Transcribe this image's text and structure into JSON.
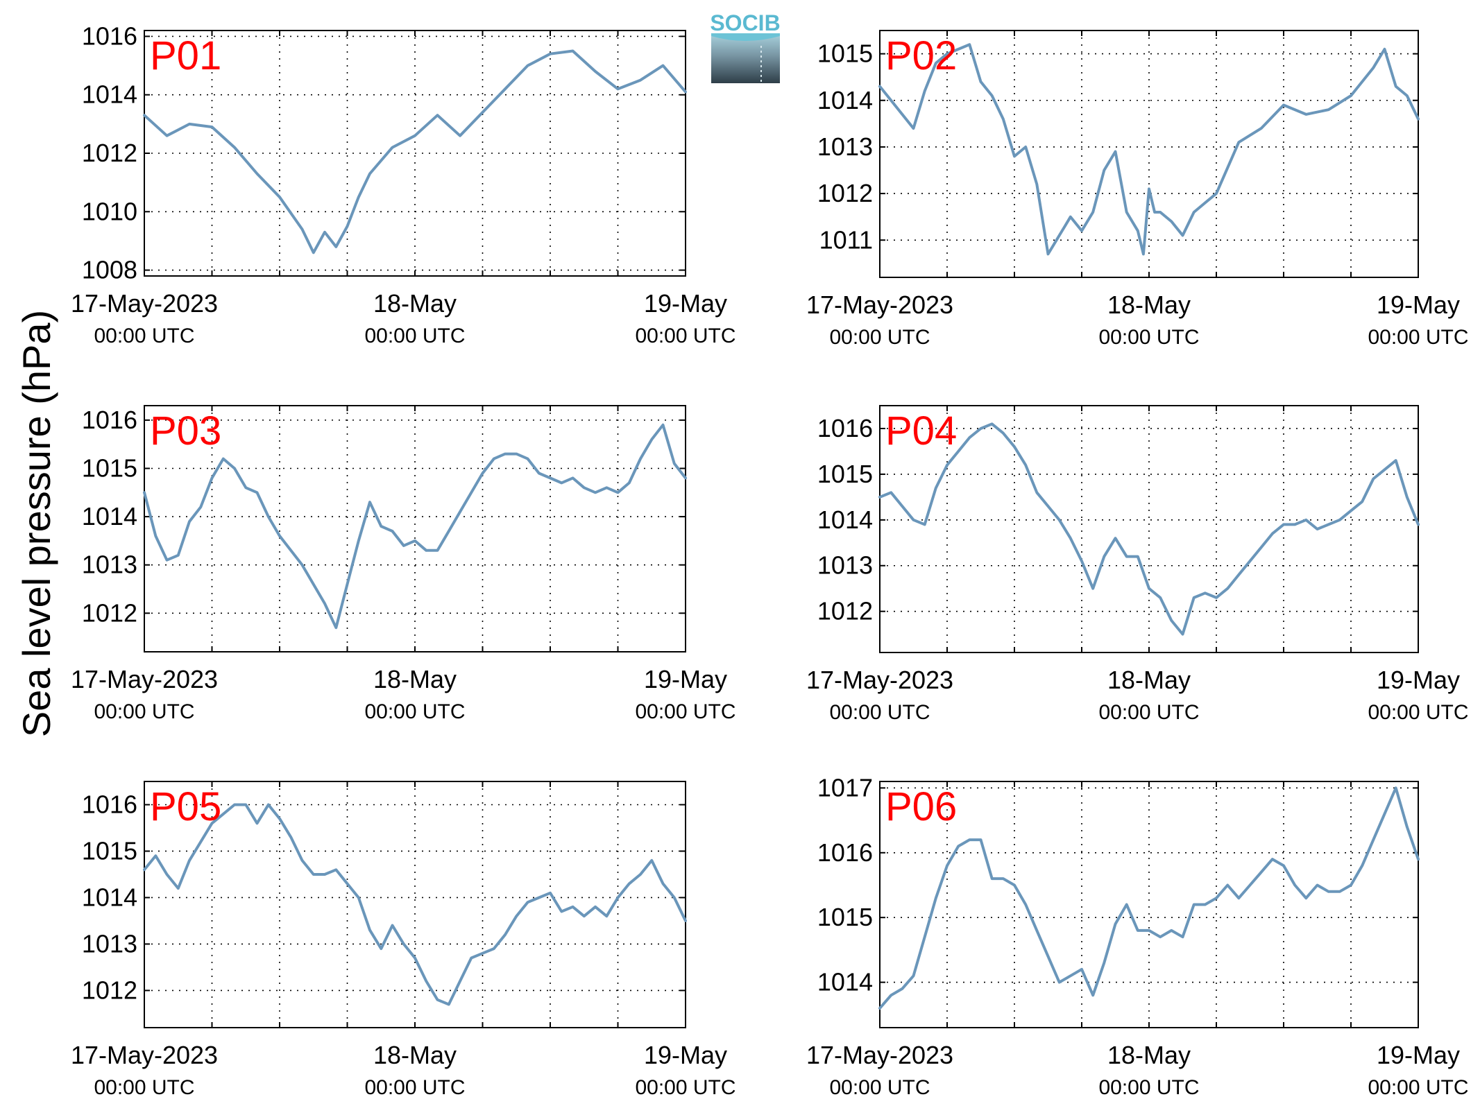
{
  "figure": {
    "ylabel": "Sea level pressure (hPa)",
    "line_color": "#6a96ba",
    "label_color": "#ff0000",
    "grid": "dotted",
    "logo": {
      "text": "SOCIB"
    }
  },
  "chart_data": [
    {
      "type": "line",
      "name": "P01",
      "ylim": [
        1007.8,
        1016.2
      ],
      "yticks": [
        1008,
        1010,
        1012,
        1014,
        1016
      ],
      "xticks": [
        {
          "label": "17-May-2023",
          "sub": "00:00 UTC"
        },
        {
          "label": "18-May",
          "sub": "00:00 UTC"
        },
        {
          "label": "19-May",
          "sub": "00:00 UTC"
        }
      ],
      "x": [
        0,
        2,
        4,
        6,
        8,
        10,
        12,
        14,
        15,
        16,
        17,
        18,
        19,
        20,
        22,
        24,
        26,
        28,
        30,
        32,
        34,
        36,
        38,
        40,
        42,
        44,
        46,
        48
      ],
      "values": [
        1013.3,
        1012.6,
        1013.0,
        1012.9,
        1012.2,
        1011.3,
        1010.5,
        1009.4,
        1008.6,
        1009.3,
        1008.8,
        1009.5,
        1010.5,
        1011.3,
        1012.2,
        1012.6,
        1013.3,
        1012.6,
        1013.4,
        1014.2,
        1015.0,
        1015.4,
        1015.5,
        1014.8,
        1014.2,
        1014.5,
        1015.0,
        1014.1
      ]
    },
    {
      "type": "line",
      "name": "P02",
      "ylim": [
        1010.2,
        1015.5
      ],
      "yticks": [
        1011,
        1012,
        1013,
        1014,
        1015
      ],
      "xticks": [
        {
          "label": "17-May-2023",
          "sub": "00:00 UTC"
        },
        {
          "label": "18-May",
          "sub": "00:00 UTC"
        },
        {
          "label": "19-May",
          "sub": "00:00 UTC"
        }
      ],
      "x": [
        0,
        1,
        3,
        4,
        5,
        6,
        8,
        9,
        10,
        11,
        12,
        13,
        14,
        15,
        16,
        16.5,
        17,
        18,
        19,
        20,
        21,
        22,
        23,
        23.5,
        24,
        24.5,
        25,
        26,
        27,
        28,
        29,
        30,
        32,
        34,
        36,
        38,
        40,
        42,
        44,
        45,
        46,
        47,
        48
      ],
      "values": [
        1014.3,
        1014.0,
        1013.4,
        1014.2,
        1014.8,
        1015.0,
        1015.2,
        1014.4,
        1014.1,
        1013.6,
        1012.8,
        1013.0,
        1012.2,
        1010.7,
        1011.1,
        1011.3,
        1011.5,
        1011.2,
        1011.6,
        1012.5,
        1012.9,
        1011.6,
        1011.2,
        1010.7,
        1012.1,
        1011.6,
        1011.6,
        1011.4,
        1011.1,
        1011.6,
        1011.8,
        1012.0,
        1013.1,
        1013.4,
        1013.9,
        1013.7,
        1013.8,
        1014.1,
        1014.7,
        1015.1,
        1014.3,
        1014.1,
        1013.6
      ]
    },
    {
      "type": "line",
      "name": "P03",
      "ylim": [
        1011.2,
        1016.3
      ],
      "yticks": [
        1012,
        1013,
        1014,
        1015,
        1016
      ],
      "xticks": [
        {
          "label": "17-May-2023",
          "sub": "00:00 UTC"
        },
        {
          "label": "18-May",
          "sub": "00:00 UTC"
        },
        {
          "label": "19-May",
          "sub": "00:00 UTC"
        }
      ],
      "x": [
        0,
        1,
        2,
        3,
        4,
        5,
        6,
        7,
        8,
        9,
        10,
        11,
        12,
        14,
        16,
        17,
        18,
        19,
        20,
        21,
        22,
        23,
        24,
        25,
        26,
        27,
        28,
        29,
        30,
        31,
        32,
        33,
        34,
        35,
        36,
        37,
        38,
        39,
        40,
        41,
        42,
        43,
        44,
        45,
        46,
        47,
        48
      ],
      "values": [
        1014.5,
        1013.6,
        1013.1,
        1013.2,
        1013.9,
        1014.2,
        1014.8,
        1015.2,
        1015.0,
        1014.6,
        1014.5,
        1014.0,
        1013.6,
        1013.0,
        1012.2,
        1011.7,
        1012.6,
        1013.5,
        1014.3,
        1013.8,
        1013.7,
        1013.4,
        1013.5,
        1013.3,
        1013.3,
        1013.7,
        1014.1,
        1014.5,
        1014.9,
        1015.2,
        1015.3,
        1015.3,
        1015.2,
        1014.9,
        1014.8,
        1014.7,
        1014.8,
        1014.6,
        1014.5,
        1014.6,
        1014.5,
        1014.7,
        1015.2,
        1015.6,
        1015.9,
        1015.1,
        1014.8
      ]
    },
    {
      "type": "line",
      "name": "P04",
      "ylim": [
        1011.1,
        1016.5
      ],
      "yticks": [
        1012,
        1013,
        1014,
        1015,
        1016
      ],
      "xticks": [
        {
          "label": "17-May-2023",
          "sub": "00:00 UTC"
        },
        {
          "label": "18-May",
          "sub": "00:00 UTC"
        },
        {
          "label": "19-May",
          "sub": "00:00 UTC"
        }
      ],
      "x": [
        0,
        1,
        2,
        3,
        4,
        5,
        6,
        7,
        8,
        9,
        10,
        11,
        12,
        13,
        14,
        15,
        16,
        17,
        18,
        19,
        20,
        21,
        22,
        23,
        24,
        25,
        26,
        27,
        28,
        29,
        30,
        31,
        32,
        33,
        34,
        35,
        36,
        37,
        38,
        39,
        40,
        41,
        42,
        43,
        44,
        45,
        46,
        47,
        48
      ],
      "values": [
        1014.5,
        1014.6,
        1014.3,
        1014.0,
        1013.9,
        1014.7,
        1015.2,
        1015.5,
        1015.8,
        1016.0,
        1016.1,
        1015.9,
        1015.6,
        1015.2,
        1014.6,
        1014.3,
        1014.0,
        1013.6,
        1013.1,
        1012.5,
        1013.2,
        1013.6,
        1013.2,
        1013.2,
        1012.5,
        1012.3,
        1011.8,
        1011.5,
        1012.3,
        1012.4,
        1012.3,
        1012.5,
        1012.8,
        1013.1,
        1013.4,
        1013.7,
        1013.9,
        1013.9,
        1014.0,
        1013.8,
        1013.9,
        1014.0,
        1014.2,
        1014.4,
        1014.9,
        1015.1,
        1015.3,
        1014.5,
        1013.9
      ]
    },
    {
      "type": "line",
      "name": "P05",
      "ylim": [
        1011.2,
        1016.5
      ],
      "yticks": [
        1012,
        1013,
        1014,
        1015,
        1016
      ],
      "xticks": [
        {
          "label": "17-May-2023",
          "sub": "00:00 UTC"
        },
        {
          "label": "18-May",
          "sub": "00:00 UTC"
        },
        {
          "label": "19-May",
          "sub": "00:00 UTC"
        }
      ],
      "x": [
        0,
        1,
        2,
        3,
        4,
        5,
        6,
        7,
        8,
        9,
        10,
        11,
        12,
        13,
        14,
        15,
        16,
        17,
        18,
        19,
        20,
        21,
        22,
        23,
        24,
        25,
        26,
        27,
        28,
        29,
        30,
        31,
        32,
        33,
        34,
        35,
        36,
        37,
        38,
        39,
        40,
        41,
        42,
        43,
        44,
        45,
        46,
        47,
        48
      ],
      "values": [
        1014.6,
        1014.9,
        1014.5,
        1014.2,
        1014.8,
        1015.2,
        1015.6,
        1015.8,
        1016.0,
        1016.0,
        1015.6,
        1016.0,
        1015.7,
        1015.3,
        1014.8,
        1014.5,
        1014.5,
        1014.6,
        1014.3,
        1014.0,
        1013.3,
        1012.9,
        1013.4,
        1013.0,
        1012.7,
        1012.2,
        1011.8,
        1011.7,
        1012.2,
        1012.7,
        1012.8,
        1012.9,
        1013.2,
        1013.6,
        1013.9,
        1014.0,
        1014.1,
        1013.7,
        1013.8,
        1013.6,
        1013.8,
        1013.6,
        1014.0,
        1014.3,
        1014.5,
        1014.8,
        1014.3,
        1014.0,
        1013.5
      ]
    },
    {
      "type": "line",
      "name": "P06",
      "ylim": [
        1013.3,
        1017.1
      ],
      "yticks": [
        1014,
        1015,
        1016,
        1017
      ],
      "xticks": [
        {
          "label": "17-May-2023",
          "sub": "00:00 UTC"
        },
        {
          "label": "18-May",
          "sub": "00:00 UTC"
        },
        {
          "label": "19-May",
          "sub": "00:00 UTC"
        }
      ],
      "x": [
        0,
        1,
        2,
        3,
        4,
        5,
        6,
        7,
        8,
        9,
        10,
        11,
        12,
        13,
        14,
        15,
        16,
        17,
        18,
        19,
        20,
        21,
        22,
        23,
        24,
        25,
        26,
        27,
        28,
        29,
        30,
        31,
        32,
        33,
        34,
        35,
        36,
        37,
        38,
        39,
        40,
        41,
        42,
        43,
        44,
        45,
        46,
        47,
        48
      ],
      "values": [
        1013.6,
        1013.8,
        1013.9,
        1014.1,
        1014.7,
        1015.3,
        1015.8,
        1016.1,
        1016.2,
        1016.2,
        1015.6,
        1015.6,
        1015.5,
        1015.2,
        1014.8,
        1014.4,
        1014.0,
        1014.1,
        1014.2,
        1013.8,
        1014.3,
        1014.9,
        1015.2,
        1014.8,
        1014.8,
        1014.7,
        1014.8,
        1014.7,
        1015.2,
        1015.2,
        1015.3,
        1015.5,
        1015.3,
        1015.5,
        1015.7,
        1015.9,
        1015.8,
        1015.5,
        1015.3,
        1015.5,
        1015.4,
        1015.4,
        1015.5,
        1015.8,
        1016.2,
        1016.6,
        1017.0,
        1016.4,
        1015.9
      ]
    }
  ]
}
